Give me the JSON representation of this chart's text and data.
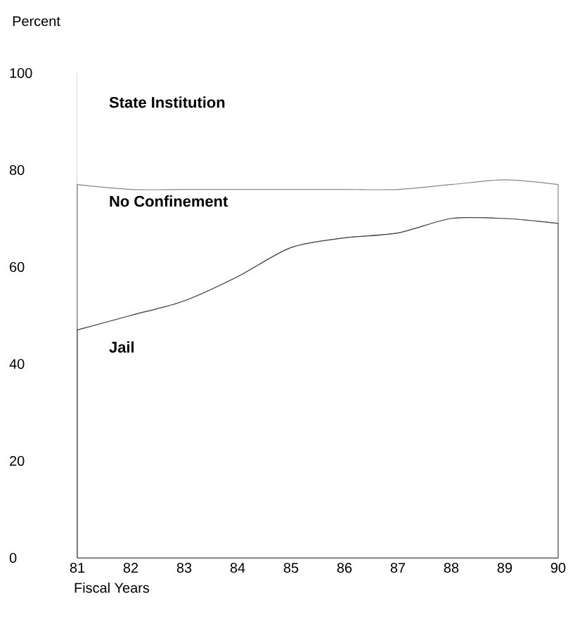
{
  "chart_data": {
    "type": "area",
    "stacked": true,
    "ylabel": "Percent",
    "xlabel": "Fiscal Years",
    "x": [
      81,
      82,
      83,
      84,
      85,
      86,
      87,
      88,
      89,
      90
    ],
    "series": [
      {
        "name": "Jail",
        "color": "#444444",
        "values": [
          47,
          50,
          53,
          58,
          64,
          66,
          67,
          70,
          70,
          69
        ]
      },
      {
        "name": "No Confinement",
        "color": "#888888",
        "values": [
          30,
          26,
          23,
          18,
          12,
          10,
          9,
          7,
          8,
          8
        ]
      },
      {
        "name": "State Institution",
        "color": "#ffffff",
        "values": [
          23,
          24,
          24,
          24,
          24,
          24,
          24,
          23,
          22,
          23
        ]
      }
    ],
    "xlim": [
      81,
      90
    ],
    "ylim": [
      0,
      100
    ],
    "xticks": [
      81,
      82,
      83,
      84,
      85,
      86,
      87,
      88,
      89,
      90
    ],
    "yticks": [
      0,
      20,
      40,
      60,
      80,
      100
    ],
    "legend": false,
    "grid": false
  }
}
